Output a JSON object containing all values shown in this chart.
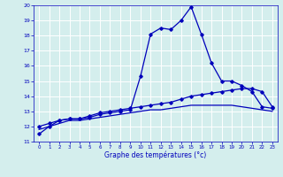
{
  "xlabel": "Graphe des températures (°c)",
  "x": [
    0,
    1,
    2,
    3,
    4,
    5,
    6,
    7,
    8,
    9,
    10,
    11,
    12,
    13,
    14,
    15,
    16,
    17,
    18,
    19,
    20,
    21,
    22,
    23
  ],
  "line1": [
    11.5,
    12.0,
    12.4,
    12.5,
    12.5,
    12.6,
    12.8,
    12.9,
    13.0,
    13.1,
    15.3,
    18.1,
    18.5,
    18.4,
    19.0,
    19.9,
    18.1,
    16.2,
    15.0,
    15.0,
    14.7,
    14.3,
    13.3,
    13.2
  ],
  "line2": [
    12.0,
    12.2,
    12.4,
    12.5,
    12.5,
    12.7,
    12.9,
    13.0,
    13.1,
    13.2,
    13.3,
    13.4,
    13.5,
    13.6,
    13.8,
    14.0,
    14.1,
    14.2,
    14.3,
    14.4,
    14.5,
    14.5,
    14.3,
    13.3
  ],
  "line3": [
    11.8,
    12.0,
    12.2,
    12.4,
    12.4,
    12.5,
    12.6,
    12.7,
    12.8,
    12.9,
    13.0,
    13.1,
    13.1,
    13.2,
    13.3,
    13.4,
    13.4,
    13.4,
    13.4,
    13.4,
    13.3,
    13.2,
    13.1,
    13.0
  ],
  "line_color": "#0000bb",
  "bg_color": "#d4eeed",
  "grid_color": "#b8d8d8",
  "ylim": [
    11,
    20
  ],
  "xlim": [
    -0.5,
    23.5
  ],
  "yticks": [
    11,
    12,
    13,
    14,
    15,
    16,
    17,
    18,
    19,
    20
  ],
  "xticks": [
    0,
    1,
    2,
    3,
    4,
    5,
    6,
    7,
    8,
    9,
    10,
    11,
    12,
    13,
    14,
    15,
    16,
    17,
    18,
    19,
    20,
    21,
    22,
    23
  ],
  "marker": "D",
  "markersize": 1.8,
  "linewidth": 0.9
}
